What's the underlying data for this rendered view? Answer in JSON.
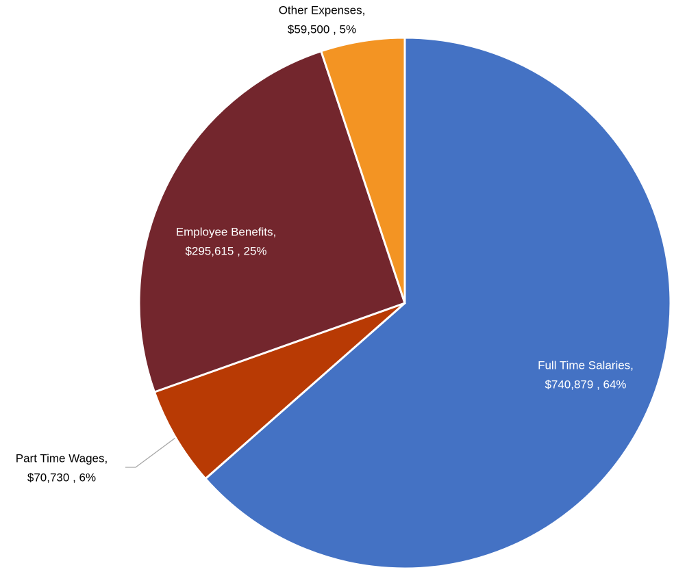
{
  "chart_data": {
    "type": "pie",
    "categories": [
      "Full Time Salaries,",
      "Part Time Wages,",
      "Employee Benefits,",
      "Other Expenses,"
    ],
    "values": [
      740879,
      70730,
      295615,
      59500
    ],
    "value_labels": [
      "$740,879 , 64%",
      "$70,730 , 6%",
      "$295,615 , 25%",
      "$59,500 , 5%"
    ],
    "colors": [
      "#4472c4",
      "#b83a04",
      "#73262d",
      "#f39423"
    ]
  }
}
